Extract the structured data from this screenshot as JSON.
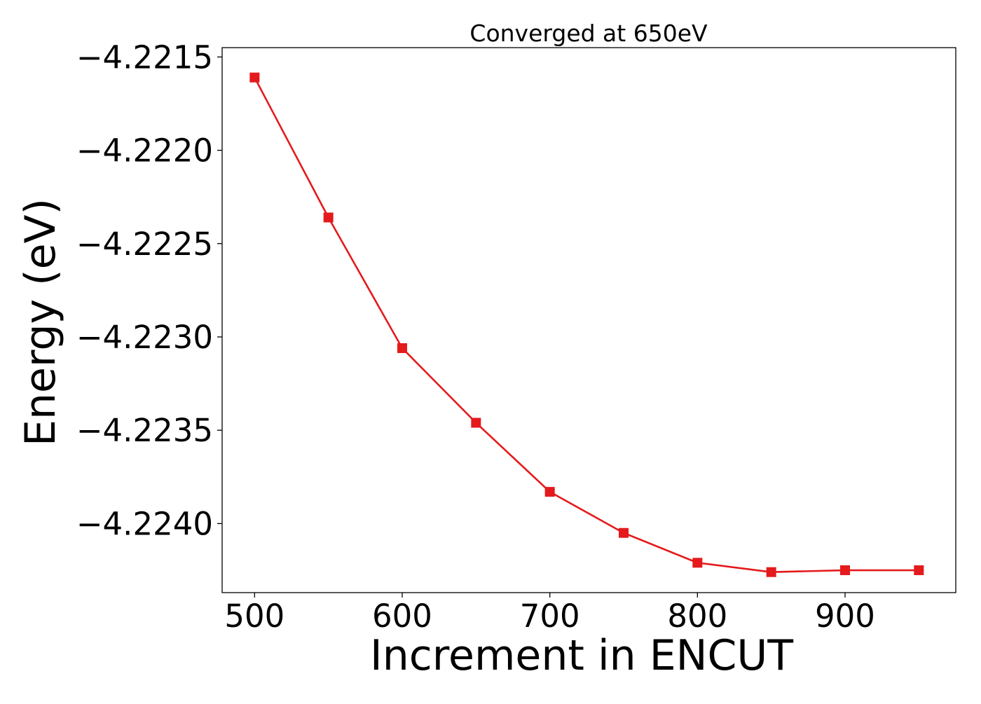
{
  "chart_data": {
    "type": "line",
    "title": "Converged at 650eV",
    "xlabel": "Increment in ENCUT",
    "ylabel": "Energy (eV)",
    "xlim": [
      478,
      975
    ],
    "ylim": [
      -4.22437,
      -4.22145
    ],
    "x_ticks": [
      500,
      600,
      700,
      800,
      900
    ],
    "x_tick_labels": [
      "500",
      "600",
      "700",
      "800",
      "900"
    ],
    "y_ticks": [
      -4.2215,
      -4.222,
      -4.2225,
      -4.223,
      -4.2235,
      -4.224
    ],
    "y_tick_labels": [
      "−4.2215",
      "−4.2220",
      "−4.2225",
      "−4.2230",
      "−4.2235",
      "−4.2240"
    ],
    "grid": false,
    "series": [
      {
        "color": "#e41a1c",
        "marker": "square",
        "x": [
          500,
          550,
          600,
          650,
          700,
          750,
          800,
          850,
          900,
          950
        ],
        "y": [
          -4.22161,
          -4.22236,
          -4.22306,
          -4.22346,
          -4.22383,
          -4.22405,
          -4.22421,
          -4.22426,
          -4.22425,
          -4.22425
        ]
      }
    ]
  }
}
